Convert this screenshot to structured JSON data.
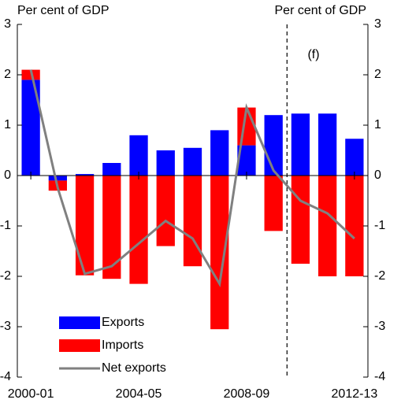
{
  "chart_data": {
    "type": "bar",
    "y_label_left": "Per cent of GDP",
    "y_label_right": "Per cent of GDP",
    "annotation": "(f)",
    "categories": [
      "2000-01",
      null,
      null,
      null,
      "2004-05",
      null,
      null,
      null,
      "2008-09",
      null,
      null,
      null,
      "2012-13"
    ],
    "series": [
      {
        "name": "Exports",
        "color": "#0000ff",
        "kind": "bar",
        "values": [
          1.9,
          -0.1,
          0.03,
          0.25,
          0.8,
          0.5,
          0.55,
          0.9,
          0.6,
          1.2,
          1.23,
          1.23,
          0.73
        ]
      },
      {
        "name": "Imports",
        "color": "#ff0000",
        "kind": "bar",
        "values": [
          0.2,
          -0.2,
          -1.98,
          -2.05,
          -2.15,
          -1.4,
          -1.8,
          -3.05,
          0.75,
          -1.1,
          -1.75,
          -2.0,
          -2.0
        ]
      },
      {
        "name": "Net exports",
        "color": "#808080",
        "kind": "line",
        "values": [
          2.1,
          -0.25,
          -1.95,
          -1.8,
          -1.35,
          -0.9,
          -1.25,
          -2.15,
          1.35,
          0.1,
          -0.5,
          -0.75,
          -1.25
        ]
      }
    ],
    "ylim": [
      -4,
      3
    ],
    "yticks": [
      -4,
      -3,
      -2,
      -1,
      0,
      1,
      2,
      3
    ],
    "y2lim": [
      -4,
      3
    ],
    "y2ticks": [
      -4,
      -3,
      -2,
      -1,
      0,
      1,
      2,
      3
    ],
    "grid": false,
    "legend": "lower left"
  }
}
